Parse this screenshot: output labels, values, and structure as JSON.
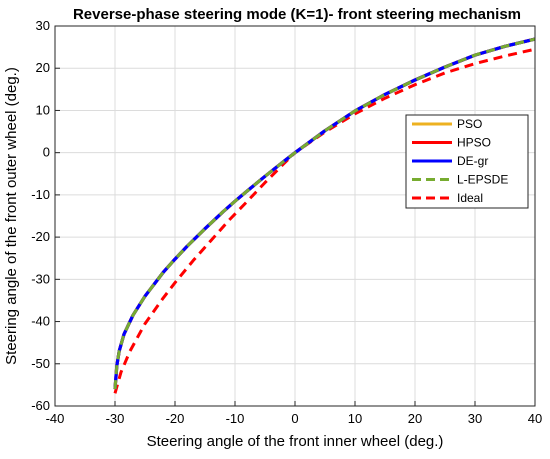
{
  "chart_data": {
    "type": "line",
    "title": "Reverse-phase steering mode (K=1)- front steering mechanism",
    "xlabel": "Steering angle of the front inner wheel (deg.)",
    "ylabel": "Steering angle of the front outer wheel (deg.)",
    "xlim": [
      -40,
      40
    ],
    "ylim": [
      -60,
      30
    ],
    "xticks": [
      "-40",
      "-30",
      "-20",
      "-10",
      "0",
      "10",
      "20",
      "30",
      "40"
    ],
    "yticks": [
      "30",
      "20",
      "10",
      "0",
      "-10",
      "-20",
      "-30",
      "-40",
      "-50",
      "-60"
    ],
    "xtick_values": [
      -40,
      -30,
      -20,
      -10,
      0,
      10,
      20,
      30,
      40
    ],
    "ytick_values": [
      30,
      20,
      10,
      0,
      -10,
      -20,
      -30,
      -40,
      -50,
      -60
    ],
    "grid": true,
    "legend_position": "right",
    "series": [
      {
        "name": "PSO",
        "color": "#EDB120",
        "dash": "solid",
        "x": [
          -30,
          -29.7,
          -29.3,
          -28.5,
          -27,
          -25,
          -22,
          -20,
          -18,
          -15,
          -12,
          -10,
          -8,
          -5,
          -2,
          0,
          5,
          10,
          15,
          20,
          25,
          30,
          35,
          40
        ],
        "y": [
          -56,
          -50.5,
          -47,
          -43,
          -38.5,
          -34,
          -28.4,
          -25.2,
          -22.2,
          -18,
          -14,
          -11.5,
          -9.1,
          -5.6,
          -2.2,
          0,
          5.2,
          9.9,
          13.8,
          17.2,
          20.3,
          23.1,
          25.2,
          26.9
        ]
      },
      {
        "name": "HPSO",
        "color": "#FF0000",
        "dash": "solid",
        "x": [
          -30,
          -29.7,
          -29.3,
          -28.5,
          -27,
          -25,
          -22,
          -20,
          -18,
          -15,
          -12,
          -10,
          -8,
          -5,
          -2,
          0,
          5,
          10,
          15,
          20,
          25,
          30,
          35,
          40
        ],
        "y": [
          -56,
          -50.5,
          -47,
          -43,
          -38.5,
          -34,
          -28.4,
          -25.2,
          -22.2,
          -18,
          -14,
          -11.5,
          -9.1,
          -5.6,
          -2.2,
          0,
          5.2,
          9.9,
          13.8,
          17.2,
          20.3,
          23.1,
          25.2,
          26.9
        ]
      },
      {
        "name": "DE-gr",
        "color": "#0000FF",
        "dash": "solid",
        "x": [
          -30,
          -29.7,
          -29.3,
          -28.5,
          -27,
          -25,
          -22,
          -20,
          -18,
          -15,
          -12,
          -10,
          -8,
          -5,
          -2,
          0,
          5,
          10,
          15,
          20,
          25,
          30,
          35,
          40
        ],
        "y": [
          -56,
          -50.5,
          -47,
          -43,
          -38.5,
          -34,
          -28.4,
          -25.2,
          -22.2,
          -18,
          -14,
          -11.5,
          -9.1,
          -5.6,
          -2.2,
          0,
          5.2,
          9.9,
          13.8,
          17.2,
          20.3,
          23.1,
          25.2,
          26.9
        ]
      },
      {
        "name": "L-EPSDE",
        "color": "#77AC30",
        "dash": "dashed",
        "x": [
          -30,
          -29.7,
          -29.3,
          -28.5,
          -27,
          -25,
          -22,
          -20,
          -18,
          -15,
          -12,
          -10,
          -8,
          -5,
          -2,
          0,
          5,
          10,
          15,
          20,
          25,
          30,
          35,
          40
        ],
        "y": [
          -56,
          -50.5,
          -47,
          -43,
          -38.5,
          -34,
          -28.4,
          -25.2,
          -22.2,
          -18,
          -14,
          -11.5,
          -9.1,
          -5.6,
          -2.2,
          0,
          5.2,
          9.9,
          13.8,
          17.2,
          20.3,
          23.1,
          25.2,
          26.9
        ]
      },
      {
        "name": "Ideal",
        "color": "#FF0000",
        "dash": "dashed",
        "x": [
          -30,
          -29,
          -27.5,
          -25,
          -22,
          -20,
          -17,
          -14,
          -11,
          -8,
          -5,
          -2,
          0,
          5,
          10,
          15,
          20,
          25,
          30,
          35,
          40
        ],
        "y": [
          -57,
          -52,
          -47,
          -40.5,
          -34.5,
          -30.8,
          -25.6,
          -20.8,
          -16,
          -11.6,
          -7.1,
          -2.8,
          0,
          4.9,
          9.2,
          12.9,
          16.1,
          18.9,
          21.1,
          22.9,
          24.5
        ]
      }
    ]
  }
}
